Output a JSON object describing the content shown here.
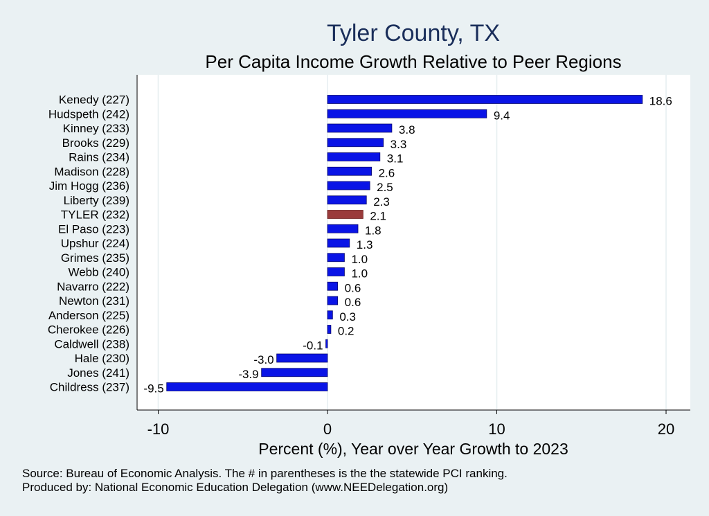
{
  "chart_data": {
    "type": "bar",
    "orientation": "horizontal",
    "title": "Tyler County, TX",
    "subtitle": "Per Capita Income Growth Relative to Peer Regions",
    "xlabel": "Percent (%), Year over Year Growth to 2023",
    "ylabel": "",
    "xlim": [
      -11,
      21
    ],
    "xticks": [
      -10,
      0,
      10,
      20
    ],
    "grid": true,
    "categories": [
      "Kenedy (227)",
      "Hudspeth (242)",
      "Kinney (233)",
      "Brooks (229)",
      "Rains (234)",
      "Madison (228)",
      "Jim Hogg (236)",
      "Liberty (239)",
      "TYLER (232)",
      "El Paso (223)",
      "Upshur (224)",
      "Grimes (235)",
      "Webb (240)",
      "Navarro (222)",
      "Newton (231)",
      "Anderson (225)",
      "Cherokee (226)",
      "Caldwell (238)",
      "Hale (230)",
      "Jones (241)",
      "Childress (237)"
    ],
    "values": [
      18.6,
      9.4,
      3.8,
      3.3,
      3.1,
      2.6,
      2.5,
      2.3,
      2.1,
      1.8,
      1.3,
      1.0,
      1.0,
      0.6,
      0.6,
      0.3,
      0.2,
      -0.1,
      -3.0,
      -3.9,
      -9.5
    ],
    "value_labels": [
      "18.6",
      "9.4",
      "3.8",
      "3.3",
      "3.1",
      "2.6",
      "2.5",
      "2.3",
      "2.1",
      "1.8",
      "1.3",
      "1.0",
      "1.0",
      "0.6",
      "0.6",
      "0.3",
      "0.2",
      "-0.1",
      "-3.0",
      "-3.9",
      "-9.5"
    ],
    "highlight_index": 8,
    "colors": {
      "bar": "#0a14e6",
      "bar_edge": "#0a0a6e",
      "highlight": "#9a3b3b",
      "highlight_edge": "#6e2323",
      "grid": "#e6eef0"
    },
    "source_note": "Source: Bureau of Economic Analysis. The # in parentheses is the the statewide PCI ranking.",
    "produced_note": "Produced by: National Economic Education Delegation (www.NEEDelegation.org)"
  }
}
